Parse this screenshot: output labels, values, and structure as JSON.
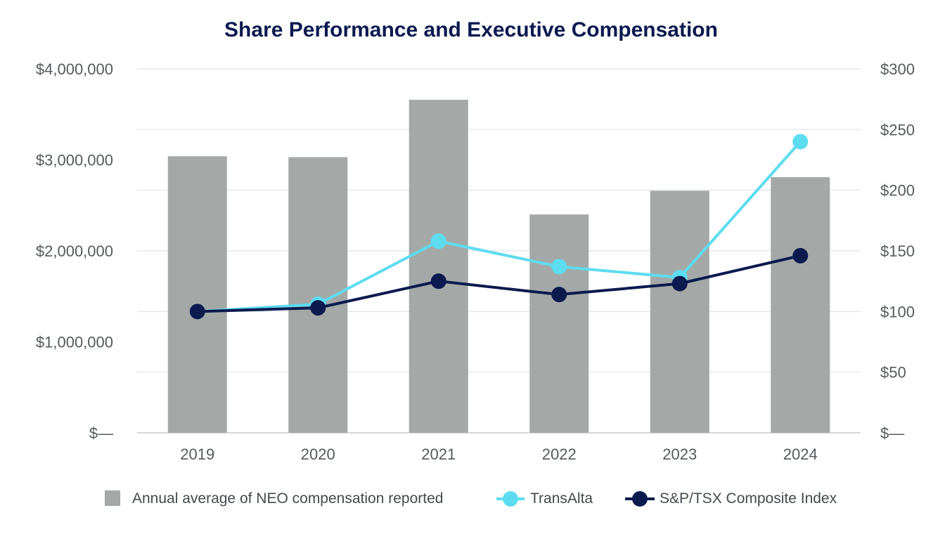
{
  "chart_data": {
    "type": "bar",
    "title": "Share Performance and Executive Compensation",
    "categories": [
      "2019",
      "2020",
      "2021",
      "2022",
      "2023",
      "2024"
    ],
    "left_axis": {
      "range": [
        0,
        4000000
      ],
      "ticks": [
        0,
        1000000,
        2000000,
        3000000,
        4000000
      ],
      "tick_labels": [
        "$—",
        "$1,000,000",
        "$2,000,000",
        "$3,000,000",
        "$4,000,000"
      ]
    },
    "right_axis": {
      "range": [
        0,
        300
      ],
      "ticks": [
        0,
        50,
        100,
        150,
        200,
        250,
        300
      ],
      "tick_labels": [
        "$—",
        "$50",
        "$100",
        "$150",
        "$200",
        "$250",
        "$300"
      ]
    },
    "grid": true,
    "legend_position": "bottom",
    "series": [
      {
        "name": "Annual average of NEO compensation reported",
        "kind": "bar",
        "axis": "left",
        "color": "#a4a9a8",
        "values": [
          3040000,
          3030000,
          3660000,
          2400000,
          2660000,
          2810000
        ]
      },
      {
        "name": "TransAlta",
        "kind": "line",
        "axis": "right",
        "color": "#5ddcf0",
        "values": [
          100,
          106,
          158,
          137,
          128,
          240
        ]
      },
      {
        "name": "S&P/TSX Composite Index",
        "kind": "line",
        "axis": "right",
        "color": "#0b1a4f",
        "values": [
          100,
          103,
          125,
          114,
          123,
          146
        ]
      }
    ]
  }
}
